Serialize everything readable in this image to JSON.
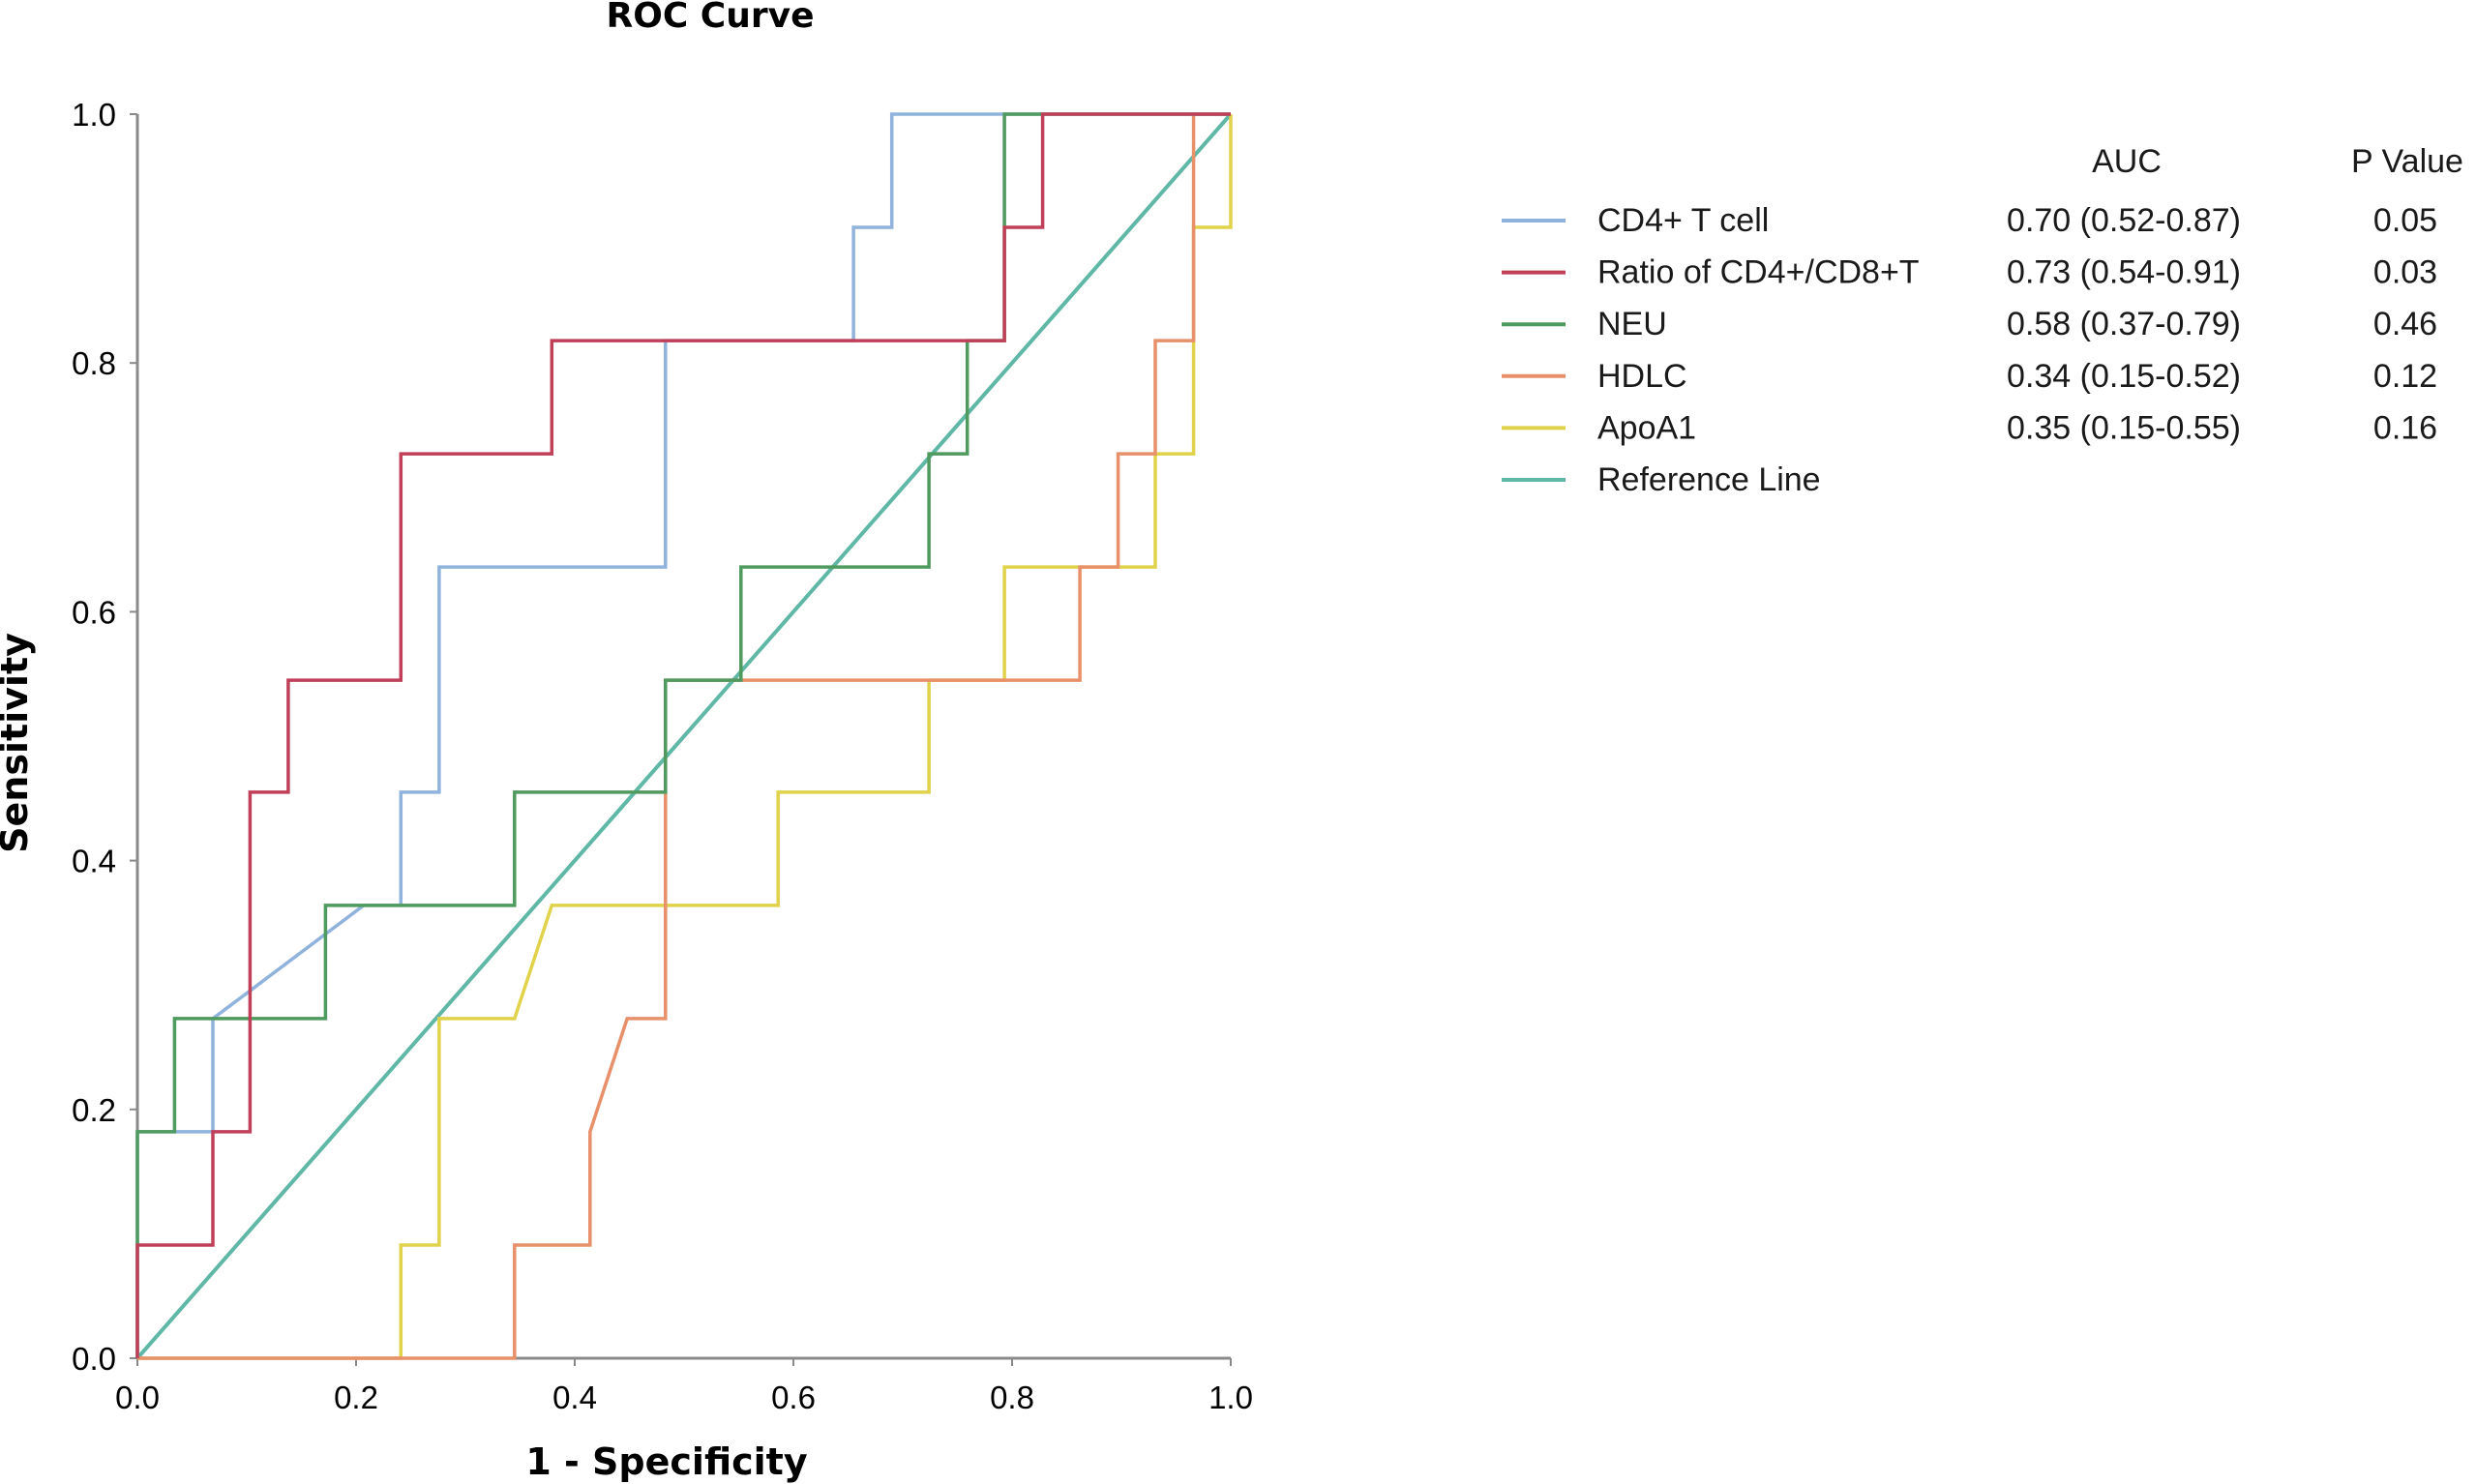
{
  "chart_data": {
    "type": "line",
    "title": "ROC Curve",
    "xlabel": "1 - Specificity",
    "ylabel": "Sensitivity",
    "xlim": [
      0,
      1
    ],
    "ylim": [
      0,
      1
    ],
    "x_ticks": [
      "0.0",
      "0.2",
      "0.4",
      "0.6",
      "0.8",
      "1.0"
    ],
    "y_ticks": [
      "0.0",
      "0.2",
      "0.4",
      "0.6",
      "0.8",
      "1.0"
    ],
    "grid": false,
    "legend_placement": "right",
    "legend_headers": {
      "auc": "AUC",
      "p": "P Value"
    },
    "series": [
      {
        "name": "CD4+ T cell",
        "auc": "0.70 (0.52-0.87)",
        "p": "0.05",
        "color": "#8fb3dc",
        "points": [
          [
            0,
            0
          ],
          [
            0,
            0.182
          ],
          [
            0.069,
            0.182
          ],
          [
            0.069,
            0.273
          ],
          [
            0.207,
            0.364
          ],
          [
            0.241,
            0.364
          ],
          [
            0.241,
            0.455
          ],
          [
            0.276,
            0.455
          ],
          [
            0.276,
            0.636
          ],
          [
            0.483,
            0.636
          ],
          [
            0.483,
            0.818
          ],
          [
            0.655,
            0.818
          ],
          [
            0.655,
            0.909
          ],
          [
            0.69,
            0.909
          ],
          [
            0.69,
            1.0
          ],
          [
            1.0,
            1.0
          ]
        ]
      },
      {
        "name": "Ratio of CD4+/CD8+T",
        "auc": "0.73 (0.54-0.91)",
        "p": "0.03",
        "color": "#c0405a",
        "points": [
          [
            0,
            0
          ],
          [
            0,
            0.091
          ],
          [
            0.069,
            0.091
          ],
          [
            0.069,
            0.182
          ],
          [
            0.103,
            0.182
          ],
          [
            0.103,
            0.455
          ],
          [
            0.138,
            0.455
          ],
          [
            0.138,
            0.545
          ],
          [
            0.241,
            0.545
          ],
          [
            0.241,
            0.727
          ],
          [
            0.379,
            0.727
          ],
          [
            0.379,
            0.818
          ],
          [
            0.793,
            0.818
          ],
          [
            0.793,
            0.909
          ],
          [
            0.828,
            0.909
          ],
          [
            0.828,
            1.0
          ],
          [
            1.0,
            1.0
          ]
        ]
      },
      {
        "name": "NEU",
        "auc": "0.58 (0.37-0.79)",
        "p": "0.46",
        "color": "#4f9a5e",
        "points": [
          [
            0,
            0
          ],
          [
            0,
            0.182
          ],
          [
            0.034,
            0.182
          ],
          [
            0.034,
            0.273
          ],
          [
            0.172,
            0.273
          ],
          [
            0.172,
            0.364
          ],
          [
            0.345,
            0.364
          ],
          [
            0.345,
            0.455
          ],
          [
            0.483,
            0.455
          ],
          [
            0.483,
            0.545
          ],
          [
            0.552,
            0.545
          ],
          [
            0.552,
            0.636
          ],
          [
            0.724,
            0.636
          ],
          [
            0.724,
            0.727
          ],
          [
            0.759,
            0.727
          ],
          [
            0.759,
            0.818
          ],
          [
            0.793,
            0.818
          ],
          [
            0.793,
            1.0
          ],
          [
            1.0,
            1.0
          ]
        ]
      },
      {
        "name": "HDLC",
        "auc": "0.34 (0.15-0.52)",
        "p": "0.12",
        "color": "#e8906a",
        "points": [
          [
            0,
            0
          ],
          [
            0.345,
            0
          ],
          [
            0.345,
            0.091
          ],
          [
            0.414,
            0.091
          ],
          [
            0.414,
            0.182
          ],
          [
            0.448,
            0.273
          ],
          [
            0.483,
            0.273
          ],
          [
            0.483,
            0.545
          ],
          [
            0.862,
            0.545
          ],
          [
            0.862,
            0.636
          ],
          [
            0.897,
            0.636
          ],
          [
            0.897,
            0.727
          ],
          [
            0.931,
            0.727
          ],
          [
            0.931,
            0.818
          ],
          [
            0.966,
            0.818
          ],
          [
            0.966,
            1.0
          ],
          [
            1.0,
            1.0
          ]
        ]
      },
      {
        "name": "ApoA1",
        "auc": "0.35 (0.15-0.55)",
        "p": "0.16",
        "color": "#e0d24a",
        "points": [
          [
            0,
            0
          ],
          [
            0.241,
            0
          ],
          [
            0.241,
            0.091
          ],
          [
            0.276,
            0.091
          ],
          [
            0.276,
            0.273
          ],
          [
            0.345,
            0.273
          ],
          [
            0.379,
            0.364
          ],
          [
            0.586,
            0.364
          ],
          [
            0.586,
            0.455
          ],
          [
            0.724,
            0.455
          ],
          [
            0.724,
            0.545
          ],
          [
            0.793,
            0.545
          ],
          [
            0.793,
            0.636
          ],
          [
            0.931,
            0.636
          ],
          [
            0.931,
            0.727
          ],
          [
            0.966,
            0.727
          ],
          [
            0.966,
            0.909
          ],
          [
            1.0,
            0.909
          ],
          [
            1.0,
            1.0
          ]
        ]
      },
      {
        "name": "Reference Line",
        "auc": "",
        "p": "",
        "color": "#5fb8a6",
        "points": [
          [
            0,
            0
          ],
          [
            1,
            1
          ]
        ]
      }
    ]
  }
}
